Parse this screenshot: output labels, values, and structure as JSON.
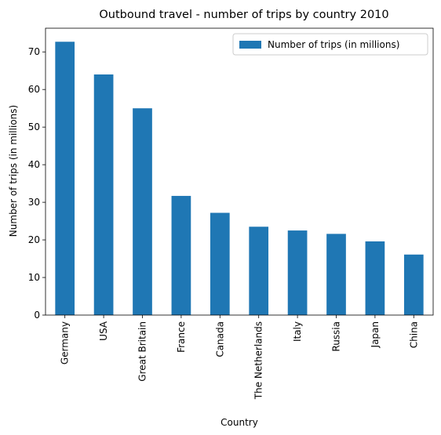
{
  "chart_data": {
    "type": "bar",
    "title": "Outbound travel - number of trips by country 2010",
    "xlabel": "Country",
    "ylabel": "Number of trips (in millions)",
    "categories": [
      "Germany",
      "USA",
      "Great Britain",
      "France",
      "Canada",
      "The Netherlands",
      "Italy",
      "Russia",
      "Japan",
      "China"
    ],
    "series": [
      {
        "name": "Number of trips (in millions)",
        "values": [
          72.7,
          64.0,
          55.0,
          31.7,
          27.2,
          23.5,
          22.5,
          21.6,
          19.6,
          16.1
        ],
        "color": "#1f77b4"
      }
    ],
    "ylim": [
      0,
      76.3
    ],
    "yticks": [
      0,
      10,
      20,
      30,
      40,
      50,
      60,
      70
    ],
    "grid": false,
    "legend_position": "top-right"
  }
}
